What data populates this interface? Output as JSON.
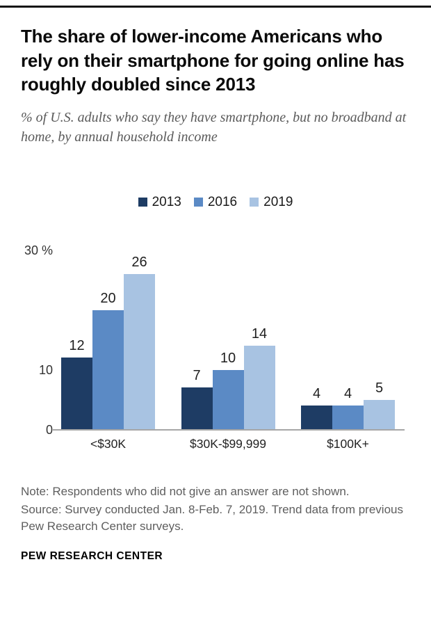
{
  "header": {
    "title": "The share of lower-income Americans who rely on their smartphone for going online has roughly doubled since 2013",
    "subtitle": "% of U.S. adults who say they have smartphone, but no broadband at home, by annual household income"
  },
  "chart_data": {
    "type": "bar",
    "categories": [
      "<$30K",
      "$30K-$99,999",
      "$100K+"
    ],
    "series": [
      {
        "name": "2013",
        "color": "#1e3c64",
        "values": [
          12,
          7,
          4
        ]
      },
      {
        "name": "2016",
        "color": "#5b8ac5",
        "values": [
          20,
          10,
          4
        ]
      },
      {
        "name": "2019",
        "color": "#a8c3e2",
        "values": [
          26,
          14,
          5
        ]
      }
    ],
    "ylim": [
      0,
      30
    ],
    "yticks": [
      {
        "label": "30 %",
        "value": 30
      },
      {
        "label": "10",
        "value": 10
      },
      {
        "label": "0",
        "value": 0
      }
    ],
    "grid": false,
    "legend_position": "top-center",
    "baseline_color": "#a6a6a6",
    "title": "",
    "xlabel": "",
    "ylabel": ""
  },
  "footer": {
    "note": "Note: Respondents who did not give an answer are not shown.",
    "source": "Source: Survey conducted Jan. 8-Feb. 7, 2019. Trend data from previous Pew Research Center surveys.",
    "brand": "PEW RESEARCH CENTER"
  }
}
